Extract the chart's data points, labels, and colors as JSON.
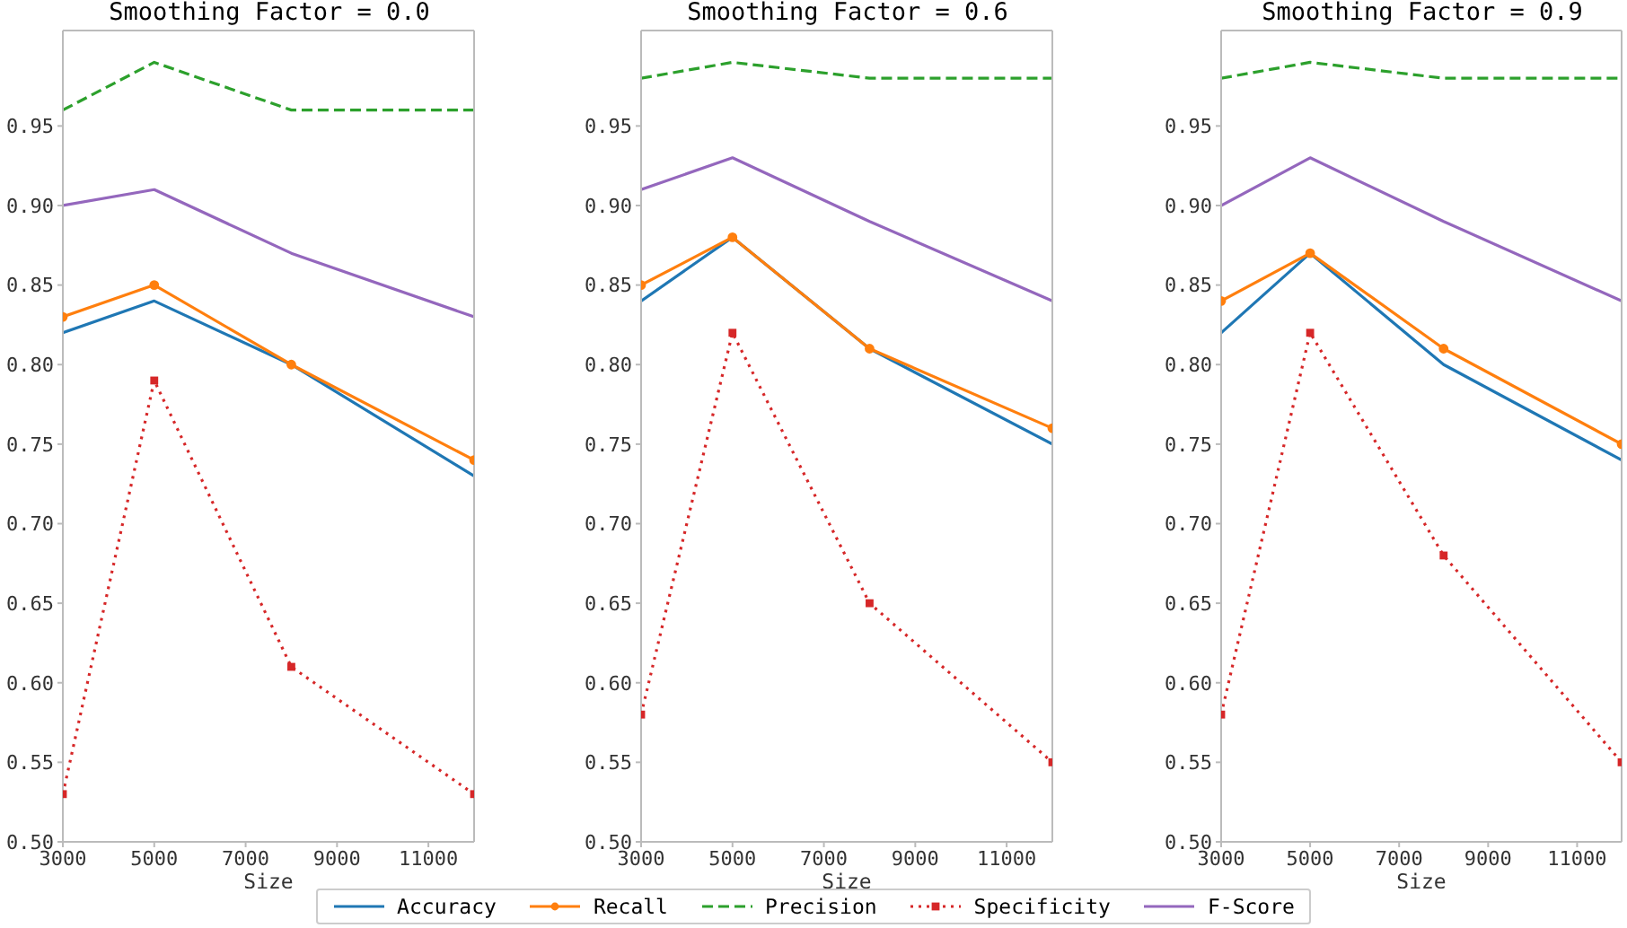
{
  "chart_data": [
    {
      "type": "line",
      "title": "Smoothing Factor = 0.0",
      "xlabel": "Size",
      "x": [
        3000,
        5000,
        8000,
        12000
      ],
      "xlim": [
        3000,
        12000
      ],
      "xticks": [
        3000,
        5000,
        7000,
        9000,
        11000
      ],
      "ylim": [
        0.5,
        1.01
      ],
      "yticks": [
        {
          "value": 0.5,
          "label": "0.50"
        },
        {
          "value": 0.55,
          "label": "0.55"
        },
        {
          "value": 0.6,
          "label": "0.60"
        },
        {
          "value": 0.65,
          "label": "0.65"
        },
        {
          "value": 0.7,
          "label": "0.70"
        },
        {
          "value": 0.75,
          "label": "0.75"
        },
        {
          "value": 0.8,
          "label": "0.80"
        },
        {
          "value": 0.85,
          "label": "0.85"
        },
        {
          "value": 0.9,
          "label": "0.90"
        },
        {
          "value": 0.95,
          "label": "0.95"
        }
      ],
      "grid": false,
      "legend": "bottom",
      "series": [
        {
          "name": "Accuracy",
          "color": "#1f77b4",
          "values": [
            0.82,
            0.84,
            0.8,
            0.73
          ]
        },
        {
          "name": "Recall",
          "color": "#ff7f0e",
          "marker": "circle",
          "values": [
            0.83,
            0.85,
            0.8,
            0.74
          ]
        },
        {
          "name": "Precision",
          "color": "#2ca02c",
          "line_style": "dashed",
          "values": [
            0.96,
            0.99,
            0.96,
            0.96
          ]
        },
        {
          "name": "Specificity",
          "color": "#d62728",
          "marker": "square",
          "line_style": "dotted",
          "values": [
            0.53,
            0.79,
            0.61,
            0.53
          ]
        },
        {
          "name": "F-Score",
          "color": "#9467bd",
          "values": [
            0.9,
            0.91,
            0.87,
            0.83
          ]
        }
      ]
    },
    {
      "type": "line",
      "title": "Smoothing Factor = 0.6",
      "xlabel": "Size",
      "x": [
        3000,
        5000,
        8000,
        12000
      ],
      "xlim": [
        3000,
        12000
      ],
      "xticks": [
        3000,
        5000,
        7000,
        9000,
        11000
      ],
      "ylim": [
        0.5,
        1.01
      ],
      "yticks": [
        {
          "value": 0.5,
          "label": "0.50"
        },
        {
          "value": 0.55,
          "label": "0.55"
        },
        {
          "value": 0.6,
          "label": "0.60"
        },
        {
          "value": 0.65,
          "label": "0.65"
        },
        {
          "value": 0.7,
          "label": "0.70"
        },
        {
          "value": 0.75,
          "label": "0.75"
        },
        {
          "value": 0.8,
          "label": "0.80"
        },
        {
          "value": 0.85,
          "label": "0.85"
        },
        {
          "value": 0.9,
          "label": "0.90"
        },
        {
          "value": 0.95,
          "label": "0.95"
        }
      ],
      "grid": false,
      "series": [
        {
          "color": "#1f77b4",
          "values": [
            0.84,
            0.88,
            0.81,
            0.75
          ]
        },
        {
          "color": "#ff7f0e",
          "marker": "circle",
          "values": [
            0.85,
            0.88,
            0.81,
            0.76
          ]
        },
        {
          "color": "#2ca02c",
          "line_style": "dashed",
          "values": [
            0.98,
            0.99,
            0.98,
            0.98
          ]
        },
        {
          "color": "#d62728",
          "marker": "square",
          "line_style": "dotted",
          "values": [
            0.58,
            0.82,
            0.65,
            0.55
          ]
        },
        {
          "color": "#9467bd",
          "values": [
            0.91,
            0.93,
            0.89,
            0.84
          ]
        }
      ]
    },
    {
      "type": "line",
      "title": "Smoothing Factor = 0.9",
      "xlabel": "Size",
      "x": [
        3000,
        5000,
        8000,
        12000
      ],
      "xlim": [
        3000,
        12000
      ],
      "xticks": [
        3000,
        5000,
        7000,
        9000,
        11000
      ],
      "ylim": [
        0.5,
        1.01
      ],
      "yticks": [
        {
          "value": 0.5,
          "label": "0.50"
        },
        {
          "value": 0.55,
          "label": "0.55"
        },
        {
          "value": 0.6,
          "label": "0.60"
        },
        {
          "value": 0.65,
          "label": "0.65"
        },
        {
          "value": 0.7,
          "label": "0.70"
        },
        {
          "value": 0.75,
          "label": "0.75"
        },
        {
          "value": 0.8,
          "label": "0.80"
        },
        {
          "value": 0.85,
          "label": "0.85"
        },
        {
          "value": 0.9,
          "label": "0.90"
        },
        {
          "value": 0.95,
          "label": "0.95"
        }
      ],
      "grid": false,
      "series": [
        {
          "color": "#1f77b4",
          "values": [
            0.82,
            0.87,
            0.8,
            0.74
          ]
        },
        {
          "color": "#ff7f0e",
          "marker": "circle",
          "values": [
            0.84,
            0.87,
            0.81,
            0.75
          ]
        },
        {
          "color": "#2ca02c",
          "line_style": "dashed",
          "values": [
            0.98,
            0.99,
            0.98,
            0.98
          ]
        },
        {
          "color": "#d62728",
          "marker": "square",
          "line_style": "dotted",
          "values": [
            0.58,
            0.82,
            0.68,
            0.55
          ]
        },
        {
          "color": "#9467bd",
          "values": [
            0.9,
            0.93,
            0.89,
            0.84
          ]
        }
      ]
    }
  ]
}
